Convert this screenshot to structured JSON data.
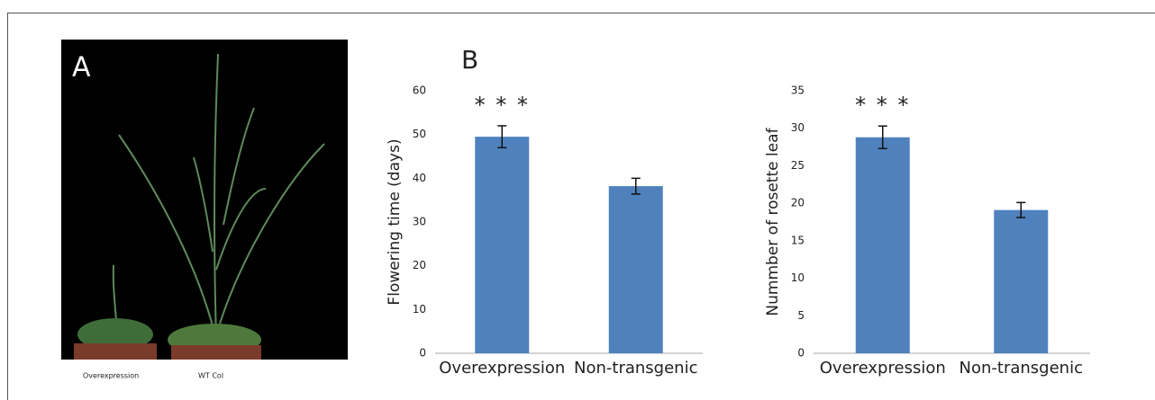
{
  "photo": {
    "label": "A",
    "captions": [
      "Overexpression",
      "WT Col"
    ]
  },
  "panel_b_label": "B",
  "chart_data": [
    {
      "type": "bar",
      "ylabel": "Flowering time (days)",
      "categories": [
        "Overexpression",
        "Non-transgenic"
      ],
      "values": [
        49.5,
        38.2
      ],
      "errors": [
        2.5,
        1.8
      ],
      "color": "#4f81bd",
      "ylim": [
        0,
        60
      ],
      "yticks": [
        0,
        10,
        20,
        30,
        40,
        50,
        60
      ],
      "grid": false,
      "annotations": [
        {
          "text": "* * *",
          "x": "Overexpression"
        }
      ]
    },
    {
      "type": "bar",
      "ylabel": "Nummber of rosette leaf",
      "categories": [
        "Overexpression",
        "Non-transgenic"
      ],
      "values": [
        28.8,
        19.1
      ],
      "errors": [
        1.5,
        1.0
      ],
      "color": "#4f81bd",
      "ylim": [
        0,
        35
      ],
      "yticks": [
        0,
        5,
        10,
        15,
        20,
        25,
        30,
        35
      ],
      "grid": false,
      "annotations": [
        {
          "text": "* * *",
          "x": "Overexpression"
        }
      ]
    }
  ]
}
